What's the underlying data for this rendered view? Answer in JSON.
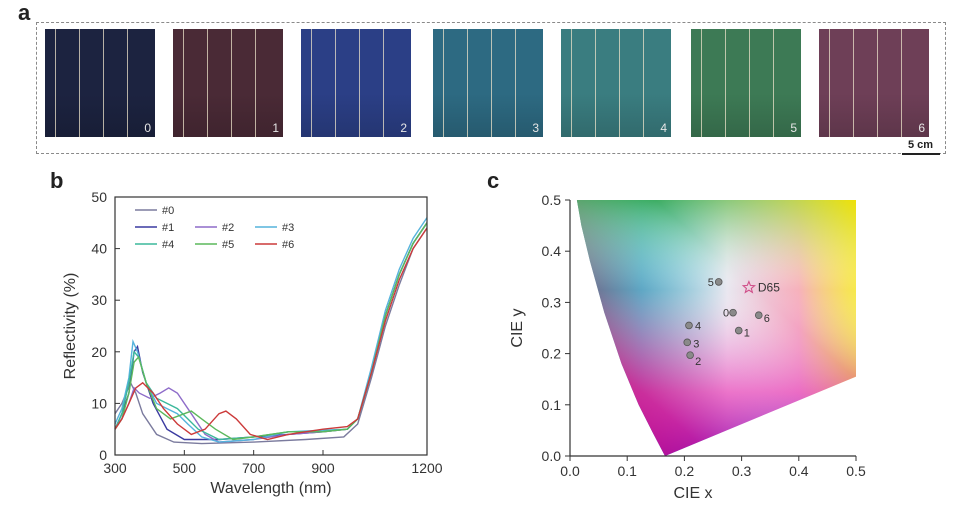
{
  "panel_a": {
    "letter": "a",
    "scale_label": "5 cm",
    "swatches": [
      {
        "label": "0",
        "color": "#1c2340"
      },
      {
        "label": "1",
        "color": "#4a2a36"
      },
      {
        "label": "2",
        "color": "#2b3f86"
      },
      {
        "label": "3",
        "color": "#2d6a82"
      },
      {
        "label": "4",
        "color": "#3a7d80"
      },
      {
        "label": "5",
        "color": "#3d7a55"
      },
      {
        "label": "6",
        "color": "#6e3f57"
      }
    ]
  },
  "panel_b": {
    "letter": "b"
  },
  "panel_c": {
    "letter": "c"
  },
  "chart_data": [
    {
      "type": "line",
      "xlabel": "Wavelength (nm)",
      "ylabel": "Reflectivity (%)",
      "xlim": [
        300,
        1200
      ],
      "ylim": [
        0,
        50
      ],
      "xticks": [
        "300",
        "500",
        "700",
        "900",
        "1200"
      ],
      "xtick_values": [
        300,
        500,
        700,
        900,
        1200
      ],
      "yticks": [
        "0",
        "10",
        "20",
        "30",
        "40",
        "50"
      ],
      "legend": {
        "entries": [
          "#0",
          "#1",
          "#2",
          "#3",
          "#4",
          "#5",
          "#6"
        ]
      },
      "series": [
        {
          "name": "#0",
          "color": "#7b7b9e",
          "points": [
            [
              300,
              8
            ],
            [
              320,
              10
            ],
            [
              345,
              14
            ],
            [
              360,
              12
            ],
            [
              380,
              8
            ],
            [
              420,
              4
            ],
            [
              470,
              2.5
            ],
            [
              550,
              2.2
            ],
            [
              700,
              2.5
            ],
            [
              850,
              3
            ],
            [
              960,
              3.5
            ],
            [
              1000,
              6
            ],
            [
              1040,
              15
            ],
            [
              1080,
              25
            ],
            [
              1120,
              33
            ],
            [
              1160,
              40
            ],
            [
              1200,
              44
            ]
          ]
        },
        {
          "name": "#1",
          "color": "#3a3aa0",
          "points": [
            [
              300,
              5
            ],
            [
              320,
              8
            ],
            [
              340,
              12
            ],
            [
              355,
              20
            ],
            [
              365,
              21
            ],
            [
              380,
              16
            ],
            [
              410,
              10
            ],
            [
              450,
              5
            ],
            [
              500,
              3
            ],
            [
              600,
              3
            ],
            [
              700,
              3.5
            ],
            [
              800,
              4
            ],
            [
              900,
              4.5
            ],
            [
              970,
              5
            ],
            [
              1000,
              7
            ],
            [
              1040,
              16
            ],
            [
              1080,
              27
            ],
            [
              1120,
              35
            ],
            [
              1160,
              41
            ],
            [
              1200,
              45
            ]
          ]
        },
        {
          "name": "#2",
          "color": "#8e6cc9",
          "points": [
            [
              300,
              5
            ],
            [
              320,
              7
            ],
            [
              340,
              10
            ],
            [
              355,
              13
            ],
            [
              370,
              12
            ],
            [
              400,
              11
            ],
            [
              430,
              12
            ],
            [
              455,
              13
            ],
            [
              480,
              12
            ],
            [
              520,
              8
            ],
            [
              560,
              4
            ],
            [
              600,
              2.5
            ],
            [
              700,
              3
            ],
            [
              800,
              4
            ],
            [
              900,
              4.5
            ],
            [
              970,
              5
            ],
            [
              1000,
              7
            ],
            [
              1040,
              16
            ],
            [
              1080,
              27
            ],
            [
              1120,
              35
            ],
            [
              1160,
              41
            ],
            [
              1200,
              45
            ]
          ]
        },
        {
          "name": "#3",
          "color": "#55b3dc",
          "points": [
            [
              300,
              6
            ],
            [
              320,
              9
            ],
            [
              340,
              15
            ],
            [
              352,
              22
            ],
            [
              365,
              20
            ],
            [
              390,
              14
            ],
            [
              420,
              10
            ],
            [
              450,
              9
            ],
            [
              480,
              8
            ],
            [
              510,
              6
            ],
            [
              550,
              3.5
            ],
            [
              600,
              2.5
            ],
            [
              700,
              3
            ],
            [
              800,
              4.5
            ],
            [
              900,
              4.8
            ],
            [
              970,
              5
            ],
            [
              1000,
              7
            ],
            [
              1040,
              17
            ],
            [
              1080,
              28
            ],
            [
              1120,
              36
            ],
            [
              1160,
              42
            ],
            [
              1200,
              46
            ]
          ]
        },
        {
          "name": "#4",
          "color": "#3bb89b",
          "points": [
            [
              300,
              5
            ],
            [
              320,
              8
            ],
            [
              340,
              14
            ],
            [
              355,
              20
            ],
            [
              368,
              19
            ],
            [
              390,
              14
            ],
            [
              420,
              11
            ],
            [
              450,
              10
            ],
            [
              480,
              9
            ],
            [
              510,
              7
            ],
            [
              540,
              5
            ],
            [
              600,
              3
            ],
            [
              700,
              3.5
            ],
            [
              800,
              4.5
            ],
            [
              900,
              4.6
            ],
            [
              970,
              5
            ],
            [
              1000,
              7
            ],
            [
              1040,
              16
            ],
            [
              1080,
              27
            ],
            [
              1120,
              35
            ],
            [
              1160,
              41
            ],
            [
              1200,
              45
            ]
          ]
        },
        {
          "name": "#5",
          "color": "#5cb85c",
          "points": [
            [
              300,
              5
            ],
            [
              320,
              7
            ],
            [
              340,
              12
            ],
            [
              355,
              18
            ],
            [
              368,
              19
            ],
            [
              390,
              14
            ],
            [
              420,
              9
            ],
            [
              460,
              7
            ],
            [
              500,
              8
            ],
            [
              520,
              8.5
            ],
            [
              550,
              7
            ],
            [
              590,
              5
            ],
            [
              640,
              3
            ],
            [
              700,
              3.5
            ],
            [
              800,
              4.5
            ],
            [
              900,
              4.5
            ],
            [
              970,
              5
            ],
            [
              1000,
              7
            ],
            [
              1040,
              16
            ],
            [
              1080,
              27
            ],
            [
              1120,
              35
            ],
            [
              1160,
              41
            ],
            [
              1200,
              45
            ]
          ]
        },
        {
          "name": "#6",
          "color": "#cc3a3a",
          "points": [
            [
              300,
              5
            ],
            [
              320,
              7
            ],
            [
              340,
              10
            ],
            [
              360,
              13
            ],
            [
              380,
              14
            ],
            [
              410,
              12
            ],
            [
              440,
              9
            ],
            [
              480,
              6
            ],
            [
              520,
              4
            ],
            [
              560,
              5
            ],
            [
              600,
              8
            ],
            [
              620,
              8.5
            ],
            [
              650,
              7
            ],
            [
              690,
              4
            ],
            [
              740,
              3
            ],
            [
              800,
              4
            ],
            [
              900,
              5
            ],
            [
              970,
              5.5
            ],
            [
              1000,
              7
            ],
            [
              1040,
              16
            ],
            [
              1080,
              26
            ],
            [
              1120,
              34
            ],
            [
              1160,
              40
            ],
            [
              1200,
              44
            ]
          ]
        }
      ]
    },
    {
      "type": "scatter",
      "xlabel": "CIE x",
      "ylabel": "CIE y",
      "xlim": [
        0.0,
        0.5
      ],
      "ylim": [
        0.0,
        0.5
      ],
      "xticks": [
        "0.0",
        "0.1",
        "0.2",
        "0.3",
        "0.4",
        "0.5"
      ],
      "yticks": [
        "0.0",
        "0.1",
        "0.2",
        "0.3",
        "0.4",
        "0.5"
      ],
      "points": [
        {
          "label": "0",
          "x": 0.285,
          "y": 0.28
        },
        {
          "label": "1",
          "x": 0.295,
          "y": 0.245
        },
        {
          "label": "2",
          "x": 0.21,
          "y": 0.197
        },
        {
          "label": "3",
          "x": 0.205,
          "y": 0.222
        },
        {
          "label": "4",
          "x": 0.208,
          "y": 0.255
        },
        {
          "label": "5",
          "x": 0.26,
          "y": 0.34
        },
        {
          "label": "6",
          "x": 0.33,
          "y": 0.275
        }
      ],
      "reference": {
        "label": "D65",
        "x": 0.3127,
        "y": 0.329
      }
    }
  ]
}
